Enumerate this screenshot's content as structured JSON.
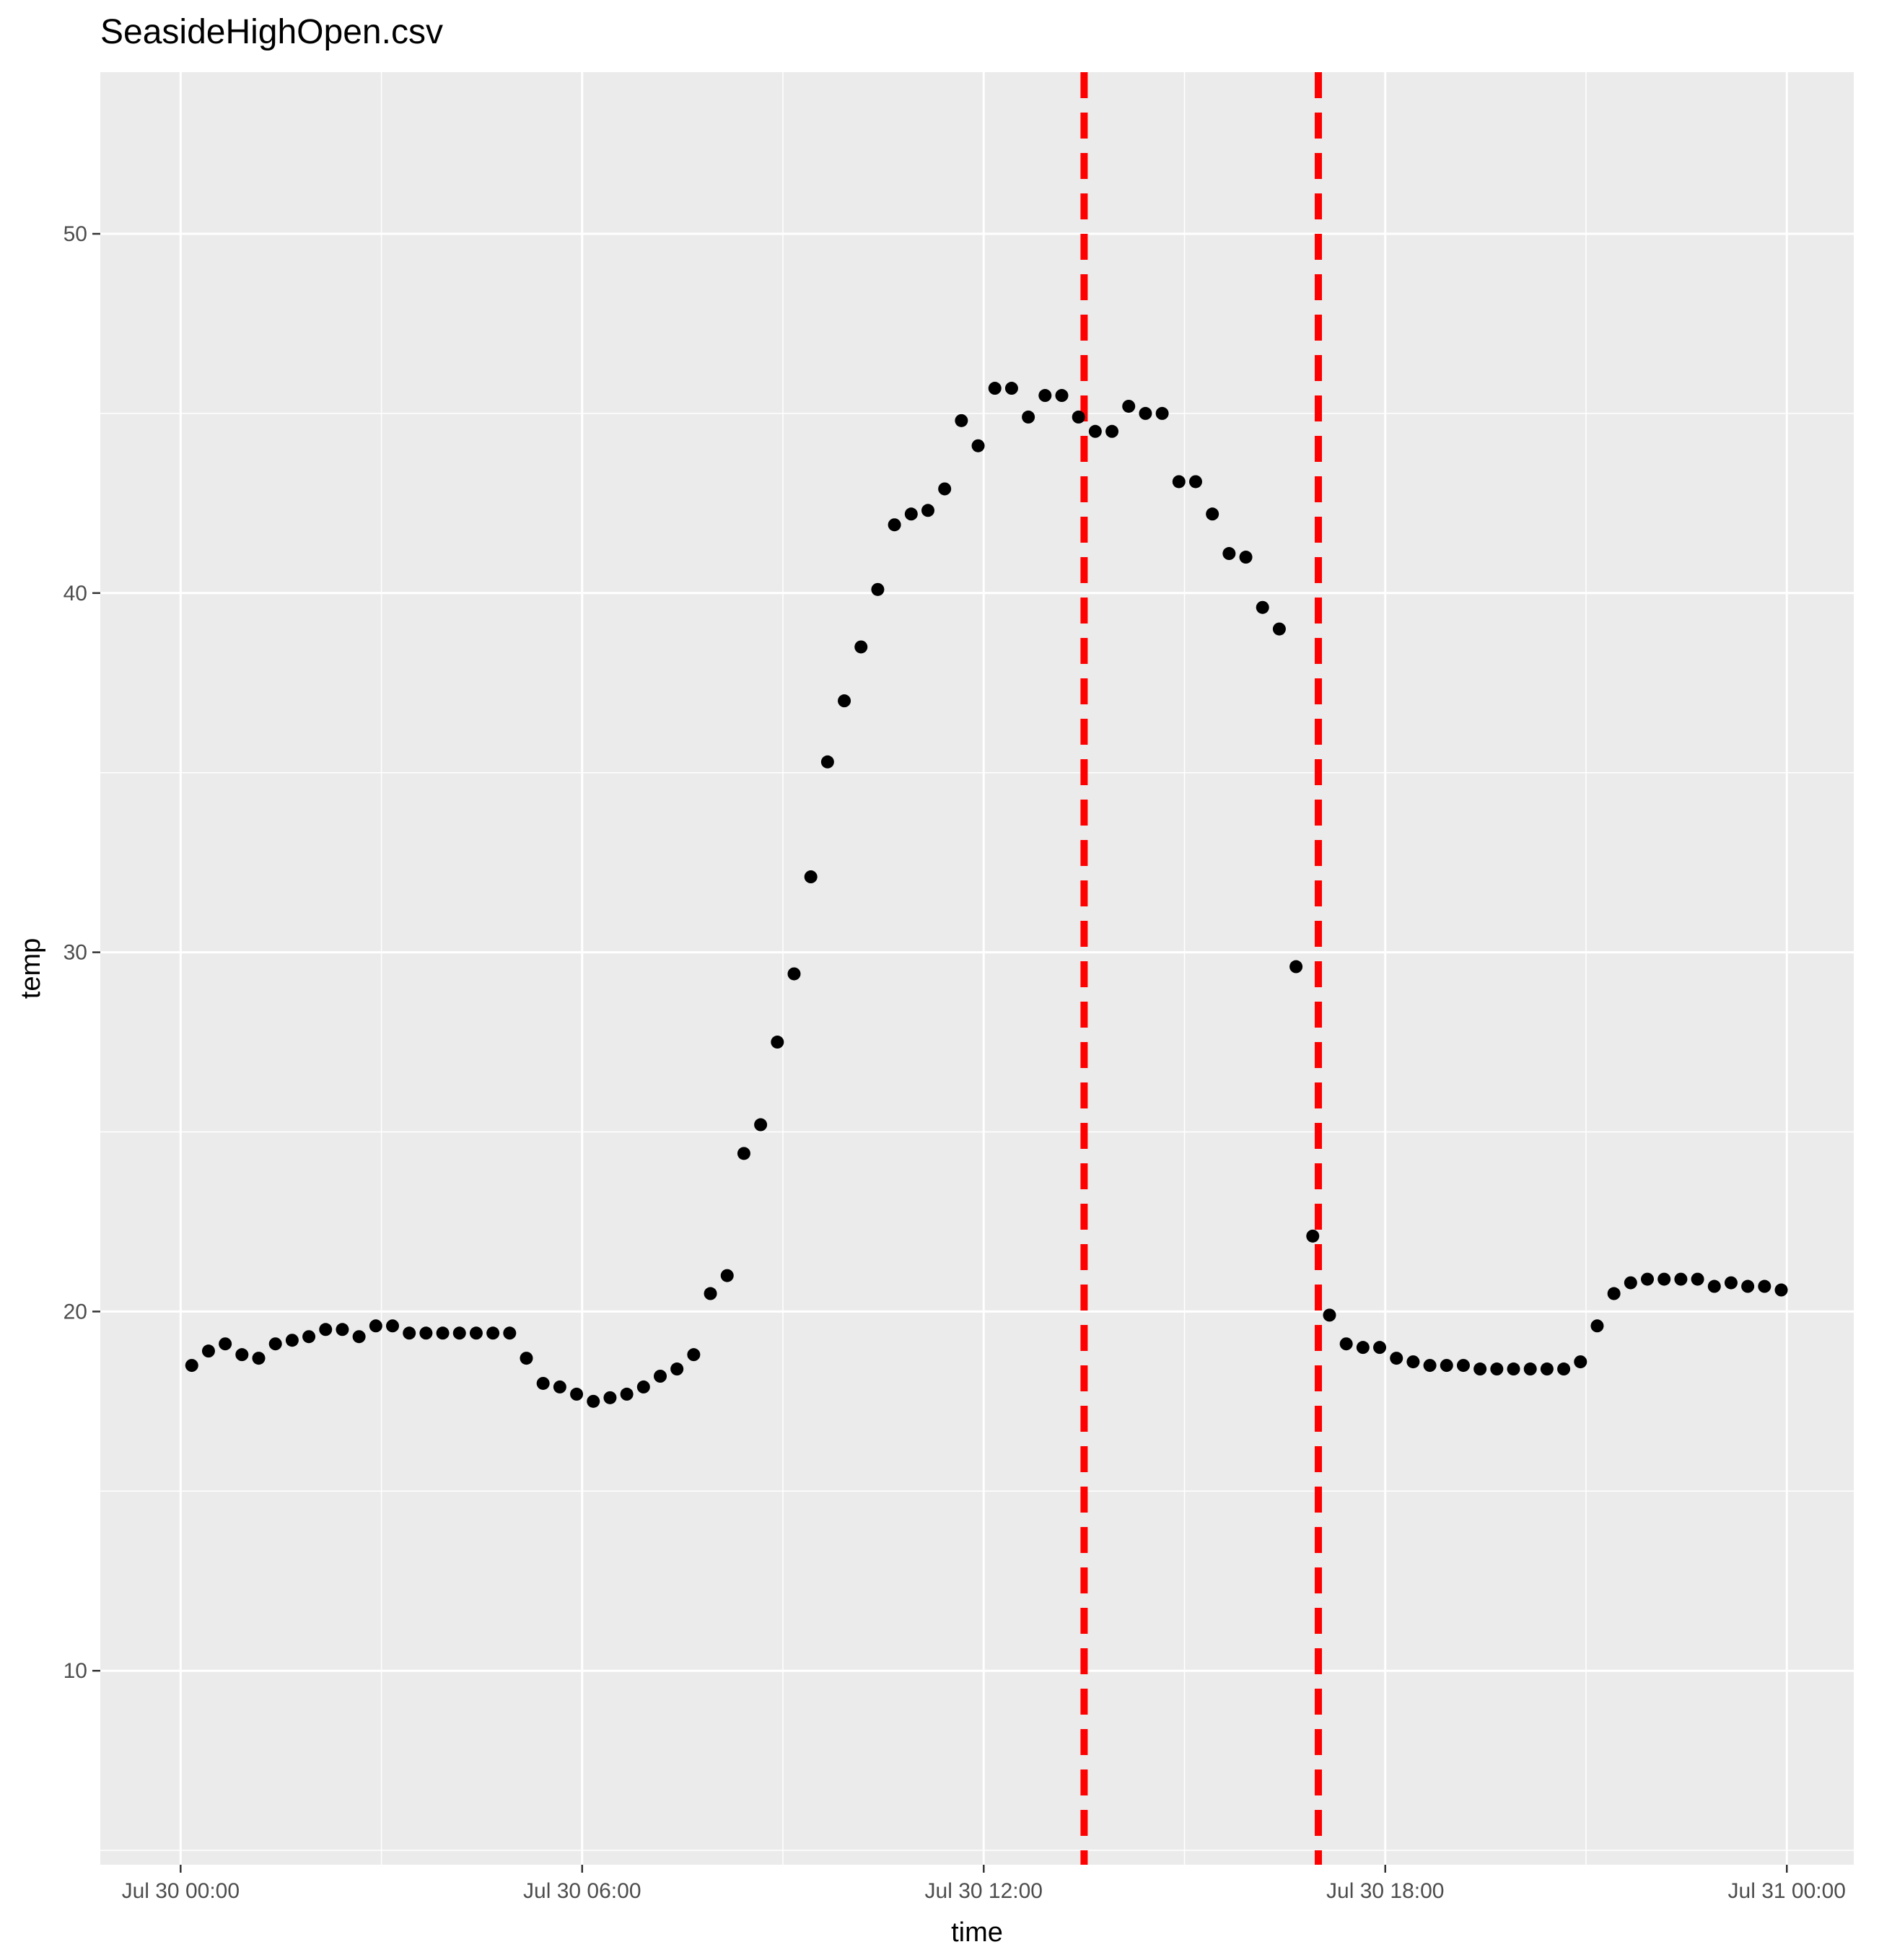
{
  "chart_data": {
    "type": "scatter",
    "title": "SeasideHighOpen.csv",
    "xlabel": "time",
    "ylabel": "temp",
    "x_tick_labels": [
      "Jul 30 00:00",
      "Jul 30 06:00",
      "Jul 30 12:00",
      "Jul 30 18:00",
      "Jul 31 00:00"
    ],
    "y_ticks": [
      10,
      20,
      30,
      40,
      50
    ],
    "y_tick_labels": [
      "10",
      "20",
      "30",
      "40",
      "50"
    ],
    "xlim": [
      "Jul 29 22:48",
      "Jul 31 01:00"
    ],
    "ylim": [
      4.6,
      54.5
    ],
    "grid": true,
    "background": "#ebebeb",
    "point_color": "#000000",
    "vline_color": "#ff0000",
    "vlines": [
      {
        "x": "Jul 30 13:30",
        "style": "dashed"
      },
      {
        "x": "Jul 30 17:00",
        "style": "dashed"
      }
    ],
    "points": [
      {
        "x": "Jul 30 00:10",
        "y": 18.5
      },
      {
        "x": "Jul 30 00:25",
        "y": 18.9
      },
      {
        "x": "Jul 30 00:40",
        "y": 19.1
      },
      {
        "x": "Jul 30 00:55",
        "y": 18.8
      },
      {
        "x": "Jul 30 01:10",
        "y": 18.7
      },
      {
        "x": "Jul 30 01:25",
        "y": 19.1
      },
      {
        "x": "Jul 30 01:40",
        "y": 19.2
      },
      {
        "x": "Jul 30 01:55",
        "y": 19.3
      },
      {
        "x": "Jul 30 02:10",
        "y": 19.5
      },
      {
        "x": "Jul 30 02:25",
        "y": 19.5
      },
      {
        "x": "Jul 30 02:40",
        "y": 19.3
      },
      {
        "x": "Jul 30 02:55",
        "y": 19.6
      },
      {
        "x": "Jul 30 03:10",
        "y": 19.6
      },
      {
        "x": "Jul 30 03:25",
        "y": 19.4
      },
      {
        "x": "Jul 30 03:40",
        "y": 19.4
      },
      {
        "x": "Jul 30 03:55",
        "y": 19.4
      },
      {
        "x": "Jul 30 04:10",
        "y": 19.4
      },
      {
        "x": "Jul 30 04:25",
        "y": 19.4
      },
      {
        "x": "Jul 30 04:40",
        "y": 19.4
      },
      {
        "x": "Jul 30 04:55",
        "y": 19.4
      },
      {
        "x": "Jul 30 05:10",
        "y": 18.7
      },
      {
        "x": "Jul 30 05:25",
        "y": 18.0
      },
      {
        "x": "Jul 30 05:40",
        "y": 17.9
      },
      {
        "x": "Jul 30 05:55",
        "y": 17.7
      },
      {
        "x": "Jul 30 06:10",
        "y": 17.5
      },
      {
        "x": "Jul 30 06:25",
        "y": 17.6
      },
      {
        "x": "Jul 30 06:40",
        "y": 17.7
      },
      {
        "x": "Jul 30 06:55",
        "y": 17.9
      },
      {
        "x": "Jul 30 07:10",
        "y": 18.2
      },
      {
        "x": "Jul 30 07:25",
        "y": 18.4
      },
      {
        "x": "Jul 30 07:40",
        "y": 18.8
      },
      {
        "x": "Jul 30 07:55",
        "y": 20.5
      },
      {
        "x": "Jul 30 08:10",
        "y": 21.0
      },
      {
        "x": "Jul 30 08:25",
        "y": 24.4
      },
      {
        "x": "Jul 30 08:40",
        "y": 25.2
      },
      {
        "x": "Jul 30 08:55",
        "y": 27.5
      },
      {
        "x": "Jul 30 09:10",
        "y": 29.4
      },
      {
        "x": "Jul 30 09:25",
        "y": 32.1
      },
      {
        "x": "Jul 30 09:40",
        "y": 35.3
      },
      {
        "x": "Jul 30 09:55",
        "y": 37.0
      },
      {
        "x": "Jul 30 10:10",
        "y": 38.5
      },
      {
        "x": "Jul 30 10:25",
        "y": 40.1
      },
      {
        "x": "Jul 30 10:40",
        "y": 41.9
      },
      {
        "x": "Jul 30 10:55",
        "y": 42.2
      },
      {
        "x": "Jul 30 11:10",
        "y": 42.3
      },
      {
        "x": "Jul 30 11:25",
        "y": 42.9
      },
      {
        "x": "Jul 30 11:40",
        "y": 44.8
      },
      {
        "x": "Jul 30 11:55",
        "y": 44.1
      },
      {
        "x": "Jul 30 12:10",
        "y": 45.7
      },
      {
        "x": "Jul 30 12:25",
        "y": 45.7
      },
      {
        "x": "Jul 30 12:40",
        "y": 44.9
      },
      {
        "x": "Jul 30 12:55",
        "y": 45.5
      },
      {
        "x": "Jul 30 13:10",
        "y": 45.5
      },
      {
        "x": "Jul 30 13:25",
        "y": 44.9
      },
      {
        "x": "Jul 30 13:40",
        "y": 44.5
      },
      {
        "x": "Jul 30 13:55",
        "y": 44.5
      },
      {
        "x": "Jul 30 14:10",
        "y": 45.2
      },
      {
        "x": "Jul 30 14:25",
        "y": 45.0
      },
      {
        "x": "Jul 30 14:40",
        "y": 45.0
      },
      {
        "x": "Jul 30 14:55",
        "y": 43.1
      },
      {
        "x": "Jul 30 15:10",
        "y": 43.1
      },
      {
        "x": "Jul 30 15:25",
        "y": 42.2
      },
      {
        "x": "Jul 30 15:40",
        "y": 41.1
      },
      {
        "x": "Jul 30 15:55",
        "y": 41.0
      },
      {
        "x": "Jul 30 16:10",
        "y": 39.6
      },
      {
        "x": "Jul 30 16:25",
        "y": 39.0
      },
      {
        "x": "Jul 30 16:40",
        "y": 29.6
      },
      {
        "x": "Jul 30 16:55",
        "y": 22.1
      },
      {
        "x": "Jul 30 17:10",
        "y": 19.9
      },
      {
        "x": "Jul 30 17:25",
        "y": 19.1
      },
      {
        "x": "Jul 30 17:40",
        "y": 19.0
      },
      {
        "x": "Jul 30 17:55",
        "y": 19.0
      },
      {
        "x": "Jul 30 18:10",
        "y": 18.7
      },
      {
        "x": "Jul 30 18:25",
        "y": 18.6
      },
      {
        "x": "Jul 30 18:40",
        "y": 18.5
      },
      {
        "x": "Jul 30 18:55",
        "y": 18.5
      },
      {
        "x": "Jul 30 19:10",
        "y": 18.5
      },
      {
        "x": "Jul 30 19:25",
        "y": 18.4
      },
      {
        "x": "Jul 30 19:40",
        "y": 18.4
      },
      {
        "x": "Jul 30 19:55",
        "y": 18.4
      },
      {
        "x": "Jul 30 20:10",
        "y": 18.4
      },
      {
        "x": "Jul 30 20:25",
        "y": 18.4
      },
      {
        "x": "Jul 30 20:40",
        "y": 18.4
      },
      {
        "x": "Jul 30 20:55",
        "y": 18.6
      },
      {
        "x": "Jul 30 21:10",
        "y": 19.6
      },
      {
        "x": "Jul 30 21:25",
        "y": 20.5
      },
      {
        "x": "Jul 30 21:40",
        "y": 20.8
      },
      {
        "x": "Jul 30 21:55",
        "y": 20.9
      },
      {
        "x": "Jul 30 22:10",
        "y": 20.9
      },
      {
        "x": "Jul 30 22:25",
        "y": 20.9
      },
      {
        "x": "Jul 30 22:40",
        "y": 20.9
      },
      {
        "x": "Jul 30 22:55",
        "y": 20.7
      },
      {
        "x": "Jul 30 23:10",
        "y": 20.8
      },
      {
        "x": "Jul 30 23:25",
        "y": 20.7
      },
      {
        "x": "Jul 30 23:40",
        "y": 20.7
      },
      {
        "x": "Jul 30 23:55",
        "y": 20.6
      }
    ]
  }
}
